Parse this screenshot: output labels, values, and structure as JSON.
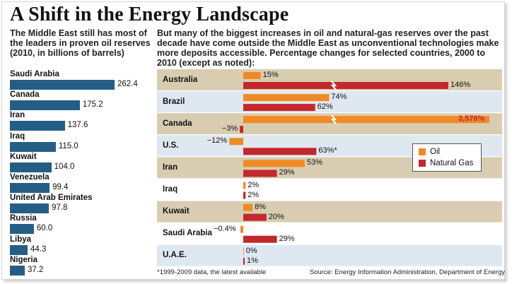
{
  "title": "A Shift in the Energy Landscape",
  "left_intro": "The Middle East still has most of the leaders in proven oil reserves (2010, in billions of barrels)",
  "right_intro": "But many of the biggest increases in oil and natural-gas reserves over the past decade have come outside the Middle East as unconventional technologies make more deposits accessible. Percentage changes for selected countries, 2000 to 2010 (except as noted):",
  "colors": {
    "reserves_bar": "#245e86",
    "oil": "#f08a24",
    "gas": "#c3282c",
    "band_dark": "#d8cdb0",
    "band_blue": "#dfe7f1",
    "band_white": "#ffffff",
    "text": "#111111"
  },
  "chart_data": [
    {
      "type": "bar",
      "orientation": "horizontal",
      "title": "Proven oil reserves, 2010 (billions of barrels)",
      "categories": [
        "Saudi Arabia",
        "Canada",
        "Iran",
        "Iraq",
        "Kuwait",
        "Venezuela",
        "United Arab Emirates",
        "Russia",
        "Libya",
        "Nigeria"
      ],
      "values": [
        262.4,
        175.2,
        137.6,
        115.0,
        104.0,
        99.4,
        97.8,
        60.0,
        44.3,
        37.2
      ],
      "value_labels": [
        "262.4",
        "175.2",
        "137.6",
        "115.0",
        "104.0",
        "99.4",
        "97.8",
        "60.0",
        "44.3",
        "37.2"
      ],
      "xlim": [
        0,
        262.4
      ]
    },
    {
      "type": "bar",
      "orientation": "horizontal",
      "title": "Percentage changes in reserves, 2000 to 2010",
      "categories": [
        "Australia",
        "Brazil",
        "Canada",
        "U.S.",
        "Iran",
        "Iraq",
        "Kuwait",
        "Saudi Arabia",
        "U.A.E."
      ],
      "series": [
        {
          "name": "Oil",
          "values": [
            15,
            74,
            3576,
            -12,
            53,
            2,
            8,
            -0.4,
            0
          ],
          "labels": [
            "15%",
            "74%",
            "3,576%",
            "−12%",
            "53%",
            "2%",
            "8%",
            "−0.4%",
            "0%"
          ]
        },
        {
          "name": "Natural Gas",
          "values": [
            146,
            62,
            -3,
            63,
            29,
            2,
            20,
            29,
            1
          ],
          "labels": [
            "146%",
            "62%",
            "−3%",
            "63%*",
            "29%",
            "2%",
            "20%",
            "29%",
            "1%"
          ]
        }
      ],
      "axis_break": "bars exceeding 80% are shown with a break",
      "legend": "right, in U.S. row area",
      "legend_labels": [
        "Oil",
        "Natural Gas"
      ]
    }
  ],
  "footnote": "*1999-2009 data, the latest available",
  "source": "Source: Energy Information Administration, Department of Energy"
}
